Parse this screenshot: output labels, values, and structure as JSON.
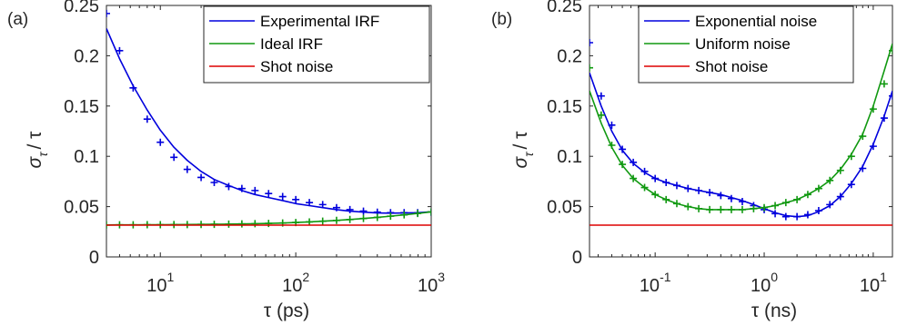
{
  "chart_data": [
    {
      "type": "line",
      "panel_label": "(a)",
      "xscale": "log",
      "xlim": [
        4,
        1000
      ],
      "ylim": [
        0,
        0.25
      ],
      "xlabel": "τ (ps)",
      "ylabel_main": "σ",
      "ylabel_sub": "τ",
      "ylabel_tail": "/ τ",
      "x_ticks": [
        10,
        100,
        1000
      ],
      "x_tick_labels": [
        {
          "base": "10",
          "exp": "1"
        },
        {
          "base": "10",
          "exp": "2"
        },
        {
          "base": "10",
          "exp": "3"
        }
      ],
      "y_ticks": [
        0,
        0.05,
        0.1,
        0.15,
        0.2,
        0.25
      ],
      "y_tick_labels": [
        "0",
        "0.05",
        "0.1",
        "0.15",
        "0.2",
        "0.25"
      ],
      "legend_position": "top-right",
      "series": [
        {
          "name": "Experimental IRF",
          "color": "#0000dd",
          "style": "line",
          "x": [
            4,
            5,
            6.3,
            8,
            10,
            12.6,
            15.8,
            20,
            25,
            32,
            40,
            50,
            63,
            80,
            100,
            126,
            158,
            200,
            251,
            316,
            400,
            501,
            631,
            794,
            1000
          ],
          "y": [
            0.227,
            0.197,
            0.17,
            0.146,
            0.126,
            0.109,
            0.096,
            0.085,
            0.077,
            0.071,
            0.066,
            0.062,
            0.059,
            0.056,
            0.053,
            0.051,
            0.049,
            0.047,
            0.0455,
            0.0445,
            0.0437,
            0.0435,
            0.0437,
            0.044,
            0.0448
          ]
        },
        {
          "name": "",
          "color": "#0000dd",
          "style": "marker",
          "x": [
            4,
            5,
            6.3,
            8,
            10,
            12.6,
            15.8,
            20,
            25,
            32,
            40,
            50,
            63,
            80,
            100,
            126,
            158,
            200,
            251,
            316,
            400,
            501,
            631,
            794,
            1000
          ],
          "y": [
            0.242,
            0.205,
            0.168,
            0.137,
            0.114,
            0.099,
            0.087,
            0.079,
            0.074,
            0.07,
            0.068,
            0.066,
            0.063,
            0.06,
            0.057,
            0.054,
            0.052,
            0.049,
            0.047,
            0.0455,
            0.0445,
            0.044,
            0.044,
            0.044,
            0.0445
          ]
        },
        {
          "name": "Ideal IRF",
          "color": "#119911",
          "style": "line",
          "x": [
            4,
            5,
            6.3,
            8,
            10,
            12.6,
            15.8,
            20,
            25,
            32,
            40,
            50,
            63,
            80,
            100,
            126,
            158,
            200,
            251,
            316,
            400,
            501,
            631,
            794,
            1000
          ],
          "y": [
            0.0318,
            0.0319,
            0.0319,
            0.032,
            0.032,
            0.0321,
            0.0322,
            0.0323,
            0.0324,
            0.0326,
            0.0328,
            0.033,
            0.0333,
            0.0337,
            0.0342,
            0.0348,
            0.0355,
            0.0363,
            0.0372,
            0.0382,
            0.0393,
            0.0405,
            0.0418,
            0.0432,
            0.0447
          ]
        },
        {
          "name": "",
          "color": "#119911",
          "style": "marker",
          "x": [
            4,
            5,
            6.3,
            8,
            10,
            12.6,
            15.8,
            20,
            25,
            32,
            40,
            50,
            63,
            80,
            100,
            126,
            158,
            200,
            251,
            316,
            400,
            501,
            631,
            794,
            1000
          ],
          "y": [
            0.0318,
            0.0319,
            0.0319,
            0.032,
            0.032,
            0.0321,
            0.0322,
            0.0323,
            0.0324,
            0.0326,
            0.0328,
            0.033,
            0.0333,
            0.0337,
            0.0342,
            0.0348,
            0.0355,
            0.0363,
            0.0372,
            0.0382,
            0.0393,
            0.0405,
            0.0418,
            0.0432,
            0.0447
          ]
        },
        {
          "name": "Shot noise",
          "color": "#dd0000",
          "style": "line",
          "x": [
            4,
            1000
          ],
          "y": [
            0.0316,
            0.0316
          ]
        }
      ]
    },
    {
      "type": "line",
      "panel_label": "(b)",
      "xscale": "log",
      "xlim": [
        0.025,
        15
      ],
      "ylim": [
        0,
        0.25
      ],
      "xlabel": "τ (ns)",
      "ylabel_main": "σ",
      "ylabel_sub": "τ",
      "ylabel_tail": "/ τ",
      "x_ticks": [
        0.1,
        1,
        10
      ],
      "x_tick_labels": [
        {
          "base": "10",
          "exp": "-1"
        },
        {
          "base": "10",
          "exp": "0"
        },
        {
          "base": "10",
          "exp": "1"
        }
      ],
      "y_ticks": [
        0,
        0.05,
        0.1,
        0.15,
        0.2,
        0.25
      ],
      "y_tick_labels": [
        "0",
        "0.05",
        "0.1",
        "0.15",
        "0.2",
        "0.25"
      ],
      "legend_position": "top-right",
      "series": [
        {
          "name": "Exponential noise",
          "color": "#0000dd",
          "style": "line",
          "x": [
            0.025,
            0.032,
            0.04,
            0.05,
            0.063,
            0.08,
            0.1,
            0.126,
            0.158,
            0.2,
            0.251,
            0.316,
            0.4,
            0.5,
            0.63,
            0.8,
            1.0,
            1.26,
            1.58,
            2.0,
            2.51,
            3.16,
            4.0,
            5.0,
            6.3,
            8.0,
            10.0,
            12.6,
            15.0
          ],
          "y": [
            0.183,
            0.15,
            0.125,
            0.106,
            0.093,
            0.084,
            0.078,
            0.074,
            0.071,
            0.068,
            0.066,
            0.064,
            0.062,
            0.059,
            0.056,
            0.052,
            0.048,
            0.044,
            0.041,
            0.04,
            0.041,
            0.045,
            0.051,
            0.06,
            0.073,
            0.09,
            0.112,
            0.14,
            0.165
          ]
        },
        {
          "name": "",
          "color": "#0000dd",
          "style": "marker",
          "x": [
            0.025,
            0.032,
            0.04,
            0.05,
            0.063,
            0.08,
            0.1,
            0.126,
            0.158,
            0.2,
            0.251,
            0.316,
            0.4,
            0.5,
            0.63,
            0.8,
            1.0,
            1.26,
            1.58,
            2.0,
            2.51,
            3.16,
            4.0,
            5.0,
            6.3,
            8.0,
            10.0,
            12.6,
            15.0
          ],
          "y": [
            0.213,
            0.16,
            0.131,
            0.107,
            0.094,
            0.085,
            0.078,
            0.074,
            0.071,
            0.068,
            0.066,
            0.064,
            0.061,
            0.058,
            0.055,
            0.051,
            0.047,
            0.043,
            0.04,
            0.04,
            0.042,
            0.046,
            0.052,
            0.06,
            0.072,
            0.088,
            0.11,
            0.138,
            0.16
          ]
        },
        {
          "name": "Uniform noise",
          "color": "#119911",
          "style": "line",
          "x": [
            0.025,
            0.032,
            0.04,
            0.05,
            0.063,
            0.08,
            0.1,
            0.126,
            0.158,
            0.2,
            0.251,
            0.316,
            0.4,
            0.5,
            0.63,
            0.8,
            1.0,
            1.26,
            1.58,
            2.0,
            2.51,
            3.16,
            4.0,
            5.0,
            6.3,
            8.0,
            10.0,
            12.6,
            15.0
          ],
          "y": [
            0.165,
            0.133,
            0.109,
            0.091,
            0.078,
            0.069,
            0.062,
            0.057,
            0.053,
            0.05,
            0.048,
            0.047,
            0.047,
            0.047,
            0.047,
            0.048,
            0.049,
            0.051,
            0.054,
            0.057,
            0.062,
            0.068,
            0.076,
            0.087,
            0.102,
            0.122,
            0.15,
            0.185,
            0.212
          ]
        },
        {
          "name": "",
          "color": "#119911",
          "style": "marker",
          "x": [
            0.025,
            0.032,
            0.04,
            0.05,
            0.063,
            0.08,
            0.1,
            0.126,
            0.158,
            0.2,
            0.251,
            0.316,
            0.4,
            0.5,
            0.63,
            0.8,
            1.0,
            1.26,
            1.58,
            2.0,
            2.51,
            3.16,
            4.0,
            5.0,
            6.3,
            8.0,
            10.0,
            12.6,
            15.0
          ],
          "y": [
            0.188,
            0.141,
            0.111,
            0.092,
            0.078,
            0.069,
            0.062,
            0.057,
            0.053,
            0.05,
            0.048,
            0.047,
            0.047,
            0.047,
            0.047,
            0.048,
            0.049,
            0.051,
            0.054,
            0.057,
            0.062,
            0.068,
            0.076,
            0.086,
            0.1,
            0.12,
            0.147,
            0.172,
            0.205
          ]
        },
        {
          "name": "Shot noise",
          "color": "#dd0000",
          "style": "line",
          "x": [
            0.025,
            15
          ],
          "y": [
            0.0316,
            0.0316
          ]
        }
      ]
    }
  ]
}
